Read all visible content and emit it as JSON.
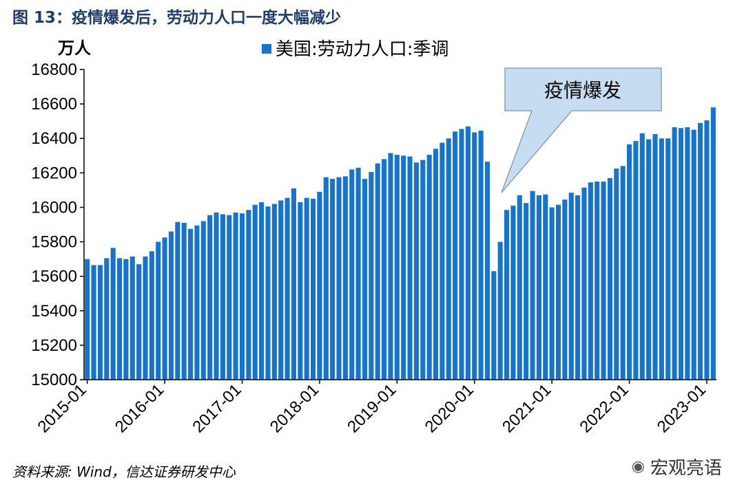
{
  "figure": {
    "title": "图 13：疫情爆发后，劳动力人口一度大幅减少",
    "unit": "万人",
    "source": "资料来源: Wind，信达证券研发中心",
    "watermark": "宏观亮语",
    "watermark_icon": "wechat-icon"
  },
  "chart_data": {
    "type": "bar",
    "title": "图 13：疫情爆发后，劳动力人口一度大幅减少",
    "ylabel": "万人",
    "xlabel": "",
    "ylim": [
      15000,
      16800
    ],
    "yticks": [
      15000,
      15200,
      15400,
      15600,
      15800,
      16000,
      16200,
      16400,
      16600,
      16800
    ],
    "xtick_labels": [
      "2015-01",
      "2016-01",
      "2017-01",
      "2018-01",
      "2019-01",
      "2020-01",
      "2021-01",
      "2022-01",
      "2023-01"
    ],
    "grid": false,
    "legend": "top-center",
    "bar_color": "#1874c8",
    "annotation": {
      "text": "疫情爆发",
      "target_category": "2020-04"
    },
    "categories": [
      "2015-01",
      "2015-02",
      "2015-03",
      "2015-04",
      "2015-05",
      "2015-06",
      "2015-07",
      "2015-08",
      "2015-09",
      "2015-10",
      "2015-11",
      "2015-12",
      "2016-01",
      "2016-02",
      "2016-03",
      "2016-04",
      "2016-05",
      "2016-06",
      "2016-07",
      "2016-08",
      "2016-09",
      "2016-10",
      "2016-11",
      "2016-12",
      "2017-01",
      "2017-02",
      "2017-03",
      "2017-04",
      "2017-05",
      "2017-06",
      "2017-07",
      "2017-08",
      "2017-09",
      "2017-10",
      "2017-11",
      "2017-12",
      "2018-01",
      "2018-02",
      "2018-03",
      "2018-04",
      "2018-05",
      "2018-06",
      "2018-07",
      "2018-08",
      "2018-09",
      "2018-10",
      "2018-11",
      "2018-12",
      "2019-01",
      "2019-02",
      "2019-03",
      "2019-04",
      "2019-05",
      "2019-06",
      "2019-07",
      "2019-08",
      "2019-09",
      "2019-10",
      "2019-11",
      "2019-12",
      "2020-01",
      "2020-02",
      "2020-03",
      "2020-04",
      "2020-05",
      "2020-06",
      "2020-07",
      "2020-08",
      "2020-09",
      "2020-10",
      "2020-11",
      "2020-12",
      "2021-01",
      "2021-02",
      "2021-03",
      "2021-04",
      "2021-05",
      "2021-06",
      "2021-07",
      "2021-08",
      "2021-09",
      "2021-10",
      "2021-11",
      "2021-12",
      "2022-01",
      "2022-02",
      "2022-03",
      "2022-04",
      "2022-05",
      "2022-06",
      "2022-07",
      "2022-08",
      "2022-09",
      "2022-10",
      "2022-11",
      "2022-12",
      "2023-01",
      "2023-02"
    ],
    "series": [
      {
        "name": "美国:劳动力人口:季调",
        "values": [
          15700,
          15665,
          15665,
          15705,
          15765,
          15705,
          15700,
          15715,
          15670,
          15715,
          15745,
          15800,
          15825,
          15860,
          15915,
          15910,
          15875,
          15895,
          15920,
          15955,
          15970,
          15960,
          15955,
          15970,
          15965,
          15985,
          16015,
          16030,
          16005,
          16020,
          16040,
          16055,
          16110,
          16030,
          16055,
          16050,
          16090,
          16175,
          16165,
          16175,
          16180,
          16220,
          16230,
          16165,
          16205,
          16255,
          16280,
          16315,
          16305,
          16300,
          16295,
          16260,
          16275,
          16305,
          16340,
          16375,
          16400,
          16440,
          16455,
          16470,
          16435,
          16445,
          16265,
          15630,
          15800,
          15985,
          16010,
          16070,
          16025,
          16095,
          16070,
          16075,
          16000,
          16015,
          16045,
          16085,
          16070,
          16115,
          16145,
          16150,
          16150,
          16170,
          16225,
          16240,
          16365,
          16385,
          16430,
          16395,
          16425,
          16400,
          16400,
          16465,
          16460,
          16465,
          16450,
          16490,
          16505,
          16580
        ]
      }
    ]
  }
}
